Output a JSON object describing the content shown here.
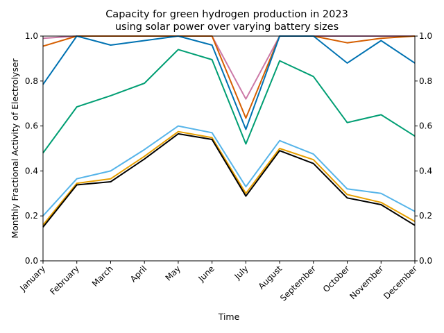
{
  "chart_data": {
    "type": "line",
    "title": "Capacity for green hydrogen production in 2023",
    "subtitle": "using solar power over varying battery sizes",
    "xlabel": "Time",
    "ylabel": "Monthly Fractional Activity of Electrolyser",
    "ylim": [
      0,
      1
    ],
    "yticks": [
      "0.0",
      "0.2",
      "0.4",
      "0.6",
      "0.8",
      "1.0"
    ],
    "secondary_yticks": [
      "0.0",
      "0.2",
      "0.4",
      "0.6",
      "0.8",
      "1.0"
    ],
    "grid": false,
    "legend": "none",
    "categories": [
      "January",
      "February",
      "March",
      "April",
      "May",
      "June",
      "July",
      "August",
      "September",
      "October",
      "November",
      "December"
    ],
    "series": [
      {
        "color": "#cc79a7",
        "values": [
          0.99,
          1.0,
          1.0,
          1.0,
          1.0,
          1.0,
          0.72,
          1.0,
          1.0,
          1.0,
          1.0,
          1.0
        ]
      },
      {
        "color": "#d55e00",
        "values": [
          0.955,
          1.0,
          1.0,
          1.0,
          1.0,
          1.0,
          0.635,
          1.0,
          1.0,
          0.97,
          0.99,
          1.0
        ]
      },
      {
        "color": "#0072b2",
        "values": [
          0.785,
          1.0,
          0.96,
          0.98,
          1.0,
          0.96,
          0.585,
          1.0,
          1.0,
          0.88,
          0.98,
          0.88
        ]
      },
      {
        "color": "#009e73",
        "values": [
          0.48,
          0.685,
          0.735,
          0.79,
          0.94,
          0.895,
          0.52,
          0.89,
          0.82,
          0.615,
          0.65,
          0.555
        ]
      },
      {
        "color": "#56b4e9",
        "values": [
          0.2,
          0.365,
          0.4,
          0.495,
          0.6,
          0.57,
          0.33,
          0.535,
          0.475,
          0.32,
          0.3,
          0.22
        ]
      },
      {
        "color": "#e69f00",
        "values": [
          0.16,
          0.345,
          0.365,
          0.465,
          0.575,
          0.548,
          0.3,
          0.5,
          0.45,
          0.295,
          0.26,
          0.175
        ]
      },
      {
        "color": "#000000",
        "values": [
          0.15,
          0.338,
          0.352,
          0.453,
          0.565,
          0.54,
          0.288,
          0.49,
          0.433,
          0.28,
          0.25,
          0.158
        ]
      }
    ]
  }
}
